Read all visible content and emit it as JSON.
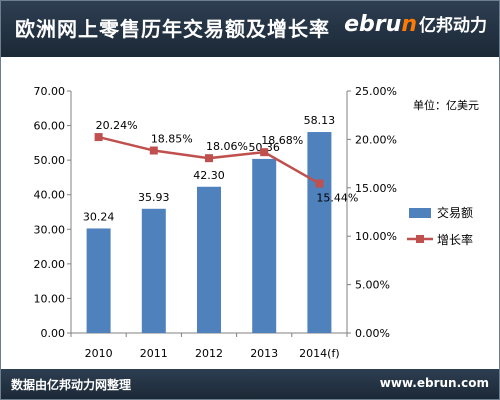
{
  "header": {
    "title": "欧洲网上零售历年交易额及增长率",
    "logo_latin_prefix": "ebru",
    "logo_latin_suffix": "n",
    "logo_cn": "亿邦动力"
  },
  "footer": {
    "source": "数据由亿邦动力网整理",
    "url": "www.ebrun.com"
  },
  "chart_data": {
    "type": "bar",
    "title": "欧洲网上零售历年交易额及增长率",
    "unit_label": "单位：亿美元",
    "categories": [
      "2010",
      "2011",
      "2012",
      "2013",
      "2014(f)"
    ],
    "series": [
      {
        "name": "交易额",
        "type": "bar",
        "axis": "left",
        "color": "#4f81bd",
        "values": [
          30.24,
          35.93,
          42.3,
          50.36,
          58.13
        ],
        "labels": [
          "30.24",
          "35.93",
          "42.30",
          "50.36",
          "58.13"
        ]
      },
      {
        "name": "增长率",
        "type": "line",
        "axis": "right",
        "color": "#c0504d",
        "values": [
          20.24,
          18.85,
          18.06,
          18.68,
          15.44
        ],
        "labels": [
          "20.24%",
          "18.85%",
          "18.06%",
          "18.68%",
          "15.44%"
        ]
      }
    ],
    "y_left": {
      "min": 0,
      "max": 70,
      "ticks": [
        "0.00",
        "10.00",
        "20.00",
        "30.00",
        "40.00",
        "50.00",
        "60.00",
        "70.00"
      ]
    },
    "y_right": {
      "min": 0,
      "max": 25,
      "ticks": [
        "0.00%",
        "5.00%",
        "10.00%",
        "15.00%",
        "20.00%",
        "25.00%"
      ]
    },
    "grid": false,
    "legend_position": "right"
  }
}
